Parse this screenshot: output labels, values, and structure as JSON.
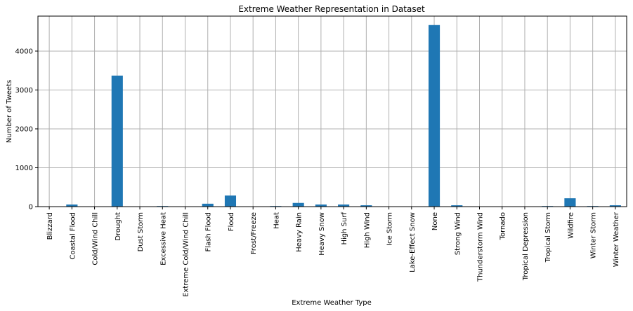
{
  "chart_data": {
    "type": "bar",
    "title": "Extreme Weather Representation in Dataset",
    "xlabel": "Extreme Weather Type",
    "ylabel": "Number of Tweets",
    "ylim": [
      0,
      4900
    ],
    "yticks": [
      0,
      1000,
      2000,
      3000,
      4000
    ],
    "grid": true,
    "bar_color": "#1f77b4",
    "categories": [
      "Blizzard",
      "Coastal Flood",
      "Cold/Wind Chill",
      "Drought",
      "Dust Storm",
      "Excessive Heat",
      "Extreme Cold/Wind Chill",
      "Flash Flood",
      "Flood",
      "Frost/Freeze",
      "Heat",
      "Heavy Rain",
      "Heavy Snow",
      "High Surf",
      "High Wind",
      "Ice Storm",
      "Lake-Effect Snow",
      "None",
      "Strong Wind",
      "Thunderstorm Wind",
      "Tornado",
      "Tropical Depression",
      "Tropical Storm",
      "Wildfire",
      "Winter Storm",
      "Winter Weather"
    ],
    "values": [
      3,
      55,
      3,
      3370,
      3,
      15,
      3,
      75,
      285,
      3,
      15,
      95,
      55,
      55,
      35,
      3,
      3,
      4670,
      35,
      3,
      3,
      3,
      15,
      215,
      15,
      35
    ]
  }
}
